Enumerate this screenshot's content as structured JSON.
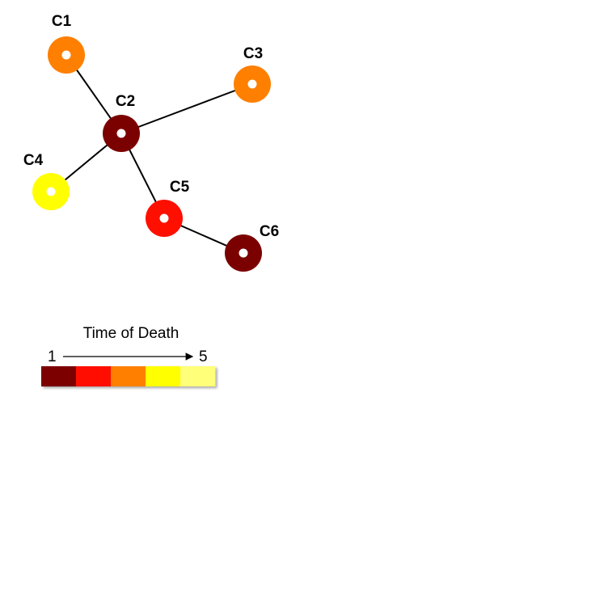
{
  "nodes": [
    {
      "id": "C1",
      "label": "C1",
      "time": 3
    },
    {
      "id": "C2",
      "label": "C2",
      "time": 1
    },
    {
      "id": "C3",
      "label": "C3",
      "time": 3
    },
    {
      "id": "C4",
      "label": "C4",
      "time": 4
    },
    {
      "id": "C5",
      "label": "C5",
      "time": 2
    },
    {
      "id": "C6",
      "label": "C6",
      "time": 1
    }
  ],
  "edges": [
    [
      "C2",
      "C1"
    ],
    [
      "C2",
      "C3"
    ],
    [
      "C2",
      "C4"
    ],
    [
      "C2",
      "C5"
    ],
    [
      "C5",
      "C6"
    ]
  ],
  "legend": {
    "title": "Time of Death",
    "start": "1",
    "end": "5",
    "colors": [
      "#7b0000",
      "#ff0f00",
      "#ff7f00",
      "#ffff00",
      "#ffff7a"
    ]
  }
}
